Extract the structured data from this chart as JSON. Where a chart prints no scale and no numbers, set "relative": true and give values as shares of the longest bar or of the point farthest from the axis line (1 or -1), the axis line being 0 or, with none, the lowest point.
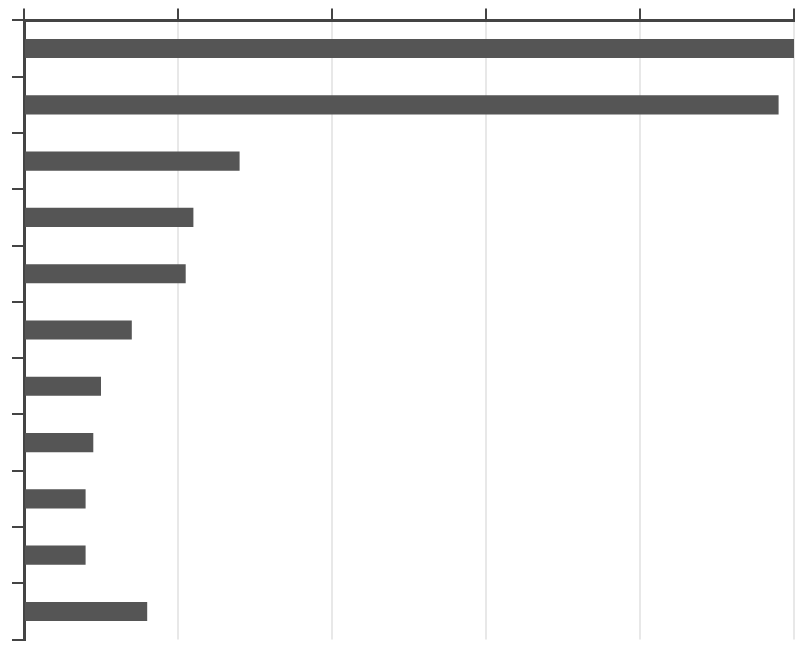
{
  "chart_data": {
    "type": "bar",
    "orientation": "horizontal",
    "relative": true,
    "categories": [
      null,
      null,
      null,
      null,
      null,
      null,
      null,
      null,
      null,
      null,
      null
    ],
    "values": [
      1,
      0.98,
      0.28,
      0.22,
      0.21,
      0.14,
      0.1,
      0.09,
      0.08,
      0.08,
      0.16
    ],
    "color": "#555555",
    "grid": "x",
    "legend": false
  }
}
